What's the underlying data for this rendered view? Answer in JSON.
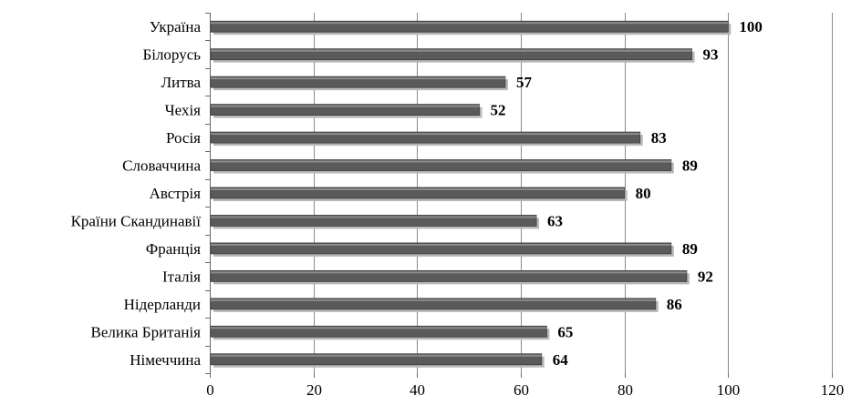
{
  "chart_data": {
    "type": "bar",
    "orientation": "horizontal",
    "categories": [
      "Україна",
      "Білорусь",
      "Литва",
      "Чехія",
      "Росія",
      "Словаччина",
      "Австрія",
      "Країни Скандинавії",
      "Франція",
      "Італія",
      "Нідерланди",
      "Велика Британія",
      "Німеччина"
    ],
    "values": [
      100,
      93,
      57,
      52,
      83,
      89,
      80,
      63,
      89,
      92,
      86,
      65,
      64
    ],
    "xlim": [
      0,
      120
    ],
    "xticks": [
      "0",
      "20",
      "40",
      "60",
      "80",
      "100",
      "120"
    ],
    "grid": true,
    "legend": "none",
    "title": "",
    "xlabel": "",
    "ylabel": "",
    "colors": {
      "bar": "#5a5a5a",
      "bar_edge": "#3c3c3c",
      "shadow": "#b8b8b8",
      "grid": "#8a8a8a",
      "axis": "#6a6a6a"
    }
  }
}
